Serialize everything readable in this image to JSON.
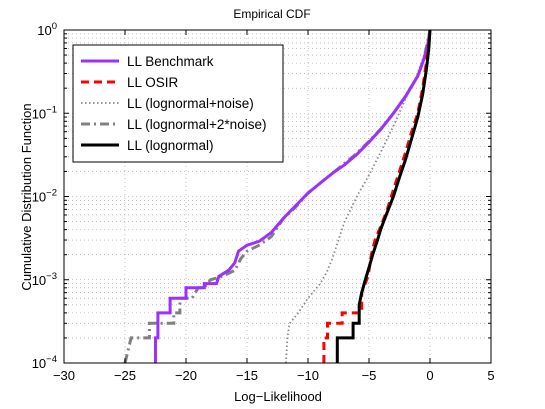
{
  "chart_data": {
    "type": "line",
    "title": "Empirical CDF",
    "xlabel": "Log−Likelihood",
    "ylabel": "Cumulative Distribution Function",
    "xlim": [
      -30,
      5
    ],
    "ylim": [
      0.0001,
      1
    ],
    "y_scale": "log",
    "x_ticks": [
      -30,
      -25,
      -20,
      -15,
      -10,
      -5,
      0,
      5
    ],
    "x_tick_labels": [
      "−30",
      "−25",
      "−20",
      "−15",
      "−10",
      "−5",
      "0",
      "5"
    ],
    "y_ticks": [
      0.0001,
      0.001,
      0.01,
      0.1,
      1
    ],
    "y_tick_bases": [
      "10",
      "10",
      "10",
      "10",
      "10"
    ],
    "y_tick_exponents": [
      "−4",
      "−3",
      "−2",
      "−1",
      "0"
    ],
    "grid": true,
    "legend_position": "top-left",
    "series": [
      {
        "name": "LL Benchmark",
        "color": "#9b30ff",
        "style": "solid",
        "points": [
          [
            -22.5,
            0.0001
          ],
          [
            -22.5,
            0.0002
          ],
          [
            -22.3,
            0.0002
          ],
          [
            -22.3,
            0.0004
          ],
          [
            -21.3,
            0.0004
          ],
          [
            -21.3,
            0.0006
          ],
          [
            -20,
            0.0006
          ],
          [
            -20,
            0.0008
          ],
          [
            -19,
            0.0008
          ],
          [
            -18.5,
            0.0008
          ],
          [
            -18.5,
            0.0009
          ],
          [
            -17.5,
            0.0009
          ],
          [
            -17.3,
            0.0011
          ],
          [
            -16.5,
            0.0013
          ],
          [
            -16,
            0.0016
          ],
          [
            -15.7,
            0.0022
          ],
          [
            -15,
            0.0026
          ],
          [
            -14,
            0.0029
          ],
          [
            -13,
            0.0037
          ],
          [
            -12,
            0.0055
          ],
          [
            -11,
            0.0078
          ],
          [
            -10,
            0.011
          ],
          [
            -9,
            0.0145
          ],
          [
            -8,
            0.019
          ],
          [
            -7,
            0.024
          ],
          [
            -6,
            0.032
          ],
          [
            -5,
            0.045
          ],
          [
            -4,
            0.065
          ],
          [
            -3,
            0.1
          ],
          [
            -2,
            0.16
          ],
          [
            -1,
            0.28
          ],
          [
            -0.5,
            0.45
          ],
          [
            -0.2,
            0.65
          ],
          [
            0,
            1
          ]
        ]
      },
      {
        "name": "LL OSIR",
        "color": "#ff0000",
        "style": "dashed",
        "points": [
          [
            -8.7,
            0.0001
          ],
          [
            -8.7,
            0.0002
          ],
          [
            -8.4,
            0.0002
          ],
          [
            -8.4,
            0.0003
          ],
          [
            -7.2,
            0.0003
          ],
          [
            -7.2,
            0.0004
          ],
          [
            -5.6,
            0.0004
          ],
          [
            -5.6,
            0.0007
          ],
          [
            -5.2,
            0.001
          ],
          [
            -5,
            0.0013
          ],
          [
            -4.8,
            0.002
          ],
          [
            -4.5,
            0.003
          ],
          [
            -4,
            0.0045
          ],
          [
            -3.5,
            0.007
          ],
          [
            -3,
            0.012
          ],
          [
            -2.5,
            0.02
          ],
          [
            -2,
            0.034
          ],
          [
            -1.5,
            0.06
          ],
          [
            -1,
            0.1
          ],
          [
            -0.6,
            0.2
          ],
          [
            -0.3,
            0.4
          ],
          [
            -0.1,
            0.7
          ],
          [
            0,
            0.85
          ]
        ]
      },
      {
        "name": "LL (lognormal+noise)",
        "color": "#888888",
        "style": "dotted",
        "points": [
          [
            -11.8,
            0.0001
          ],
          [
            -11.7,
            0.0002
          ],
          [
            -11.5,
            0.0003
          ],
          [
            -10.8,
            0.0004
          ],
          [
            -10,
            0.0006
          ],
          [
            -9,
            0.0009
          ],
          [
            -8.5,
            0.0012
          ],
          [
            -8,
            0.0018
          ],
          [
            -7.5,
            0.003
          ],
          [
            -7,
            0.005
          ],
          [
            -6.5,
            0.007
          ],
          [
            -6,
            0.01
          ],
          [
            -5,
            0.018
          ],
          [
            -4,
            0.035
          ],
          [
            -3,
            0.07
          ],
          [
            -2,
            0.15
          ],
          [
            -1,
            0.3
          ],
          [
            -0.3,
            0.6
          ],
          [
            0,
            1
          ]
        ]
      },
      {
        "name": "LL (lognormal+2*noise)",
        "color": "#808080",
        "style": "dashdot",
        "points": [
          [
            -25,
            0.0001
          ],
          [
            -24.5,
            0.0002
          ],
          [
            -23,
            0.0002
          ],
          [
            -23,
            0.0003
          ],
          [
            -21,
            0.0003
          ],
          [
            -21,
            0.0004
          ],
          [
            -20.5,
            0.0004
          ],
          [
            -20.5,
            0.0006
          ],
          [
            -19.5,
            0.0006
          ],
          [
            -19,
            0.0008
          ],
          [
            -18.5,
            0.0008
          ],
          [
            -18,
            0.001
          ],
          [
            -17,
            0.0011
          ],
          [
            -16,
            0.0013
          ],
          [
            -15.5,
            0.0018
          ],
          [
            -15,
            0.0022
          ],
          [
            -14,
            0.0026
          ],
          [
            -13,
            0.0033
          ],
          [
            -12,
            0.0055
          ],
          [
            -11,
            0.0075
          ],
          [
            -10,
            0.011
          ],
          [
            -9,
            0.0145
          ],
          [
            -8,
            0.019
          ],
          [
            -7,
            0.025
          ],
          [
            -6,
            0.033
          ],
          [
            -5,
            0.046
          ],
          [
            -4,
            0.065
          ],
          [
            -3,
            0.1
          ],
          [
            -2,
            0.16
          ],
          [
            -1,
            0.28
          ],
          [
            -0.5,
            0.45
          ],
          [
            0,
            1
          ]
        ]
      },
      {
        "name": "LL (lognormal)",
        "color": "#000000",
        "style": "solid",
        "points": [
          [
            -7.6,
            0.0001
          ],
          [
            -7.6,
            0.0002
          ],
          [
            -6.3,
            0.0002
          ],
          [
            -6.3,
            0.0003
          ],
          [
            -5.8,
            0.0003
          ],
          [
            -5.8,
            0.0005
          ],
          [
            -5.6,
            0.0007
          ],
          [
            -5.3,
            0.001
          ],
          [
            -5,
            0.0014
          ],
          [
            -4.7,
            0.002
          ],
          [
            -4.3,
            0.003
          ],
          [
            -4,
            0.0042
          ],
          [
            -3.5,
            0.0065
          ],
          [
            -3,
            0.01
          ],
          [
            -2.5,
            0.017
          ],
          [
            -2,
            0.028
          ],
          [
            -1.5,
            0.05
          ],
          [
            -1,
            0.09
          ],
          [
            -0.6,
            0.17
          ],
          [
            -0.3,
            0.33
          ],
          [
            -0.1,
            0.6
          ],
          [
            0,
            1
          ]
        ]
      }
    ]
  }
}
